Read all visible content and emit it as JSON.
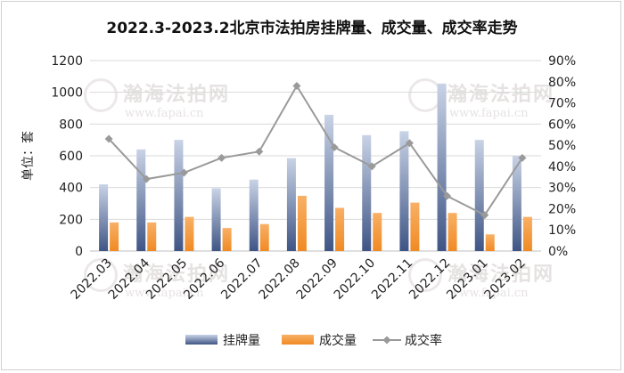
{
  "chart_data": {
    "type": "bar",
    "title": "2022.3-2023.2北京市法拍房挂牌量、成交量、成交率走势",
    "ylabel": "单位：套",
    "categories": [
      "2022.03",
      "2022.04",
      "2022.05",
      "2022.06",
      "2022.07",
      "2022.08",
      "2022.09",
      "2022.10",
      "2022.11",
      "2022.12",
      "2023.01",
      "2023.02"
    ],
    "ylim": [
      0,
      1200
    ],
    "yticks": [
      "0",
      "200",
      "400",
      "600",
      "800",
      "1000",
      "1200"
    ],
    "y2lim": [
      0,
      0.9
    ],
    "y2ticks": [
      "0%",
      "10%",
      "20%",
      "30%",
      "40%",
      "50%",
      "60%",
      "70%",
      "80%",
      "90%"
    ],
    "grid": true,
    "legend_position": "bottom",
    "series": [
      {
        "name": "挂牌量",
        "kind": "bar",
        "axis": "left",
        "color": "#4a5f8f",
        "values": [
          420,
          640,
          700,
          395,
          450,
          585,
          858,
          730,
          755,
          1055,
          700,
          600
        ]
      },
      {
        "name": "成交量",
        "kind": "bar",
        "axis": "left",
        "color": "#f59a3c",
        "values": [
          180,
          180,
          215,
          145,
          170,
          348,
          272,
          240,
          305,
          240,
          105,
          215
        ]
      },
      {
        "name": "成交率",
        "kind": "line",
        "axis": "right",
        "color": "#9a9a9a",
        "values": [
          0.53,
          0.34,
          0.37,
          0.44,
          0.47,
          0.78,
          0.49,
          0.4,
          0.51,
          0.26,
          0.17,
          0.44
        ]
      }
    ]
  },
  "watermark": {
    "text": "瀚海法拍网",
    "url": "www.fapai.cn"
  }
}
